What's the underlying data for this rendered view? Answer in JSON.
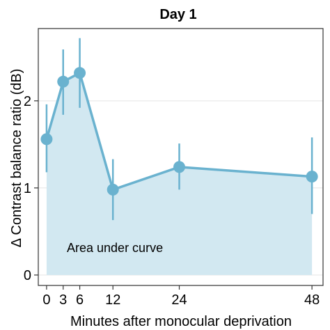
{
  "chart_data": {
    "type": "line",
    "title": "Day 1",
    "xlabel": "Minutes after monocular deprivation",
    "ylabel": "Δ Contrast balance ratio (dB)",
    "x": [
      0,
      3,
      6,
      12,
      24,
      48
    ],
    "x_ticks": [
      "0",
      "3",
      "6",
      "12",
      "24",
      "48"
    ],
    "y_ticks": [
      "0",
      "1",
      "2"
    ],
    "xlim": [
      -1.5,
      50
    ],
    "ylim": [
      -0.12,
      2.83
    ],
    "series": [
      {
        "values": [
          1.56,
          2.22,
          2.32,
          0.98,
          1.24,
          1.13
        ],
        "error_low": [
          1.18,
          1.84,
          1.92,
          0.63,
          0.98,
          0.7
        ],
        "error_high": [
          1.96,
          2.59,
          2.72,
          1.33,
          1.51,
          1.58
        ]
      }
    ],
    "area_fill": true,
    "annotation": "Area under curve",
    "grid": "horizontal",
    "colors": {
      "line": "#6ab2cf",
      "marker": "#6ab2cf",
      "area": "#d2e8f1",
      "grid": "#e5e5e5"
    }
  }
}
